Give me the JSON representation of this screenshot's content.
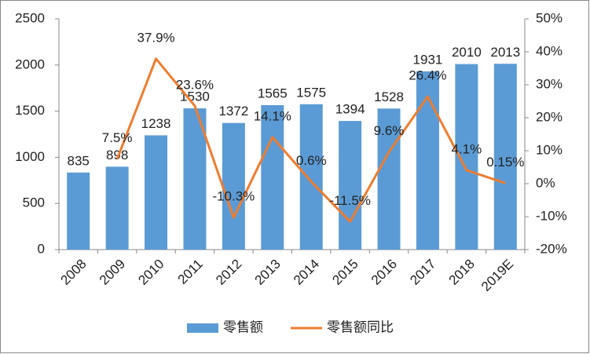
{
  "chart_data": {
    "type": "bar_line",
    "categories": [
      "2008",
      "2009",
      "2010",
      "2011",
      "2012",
      "2013",
      "2014",
      "2015",
      "2016",
      "2017",
      "2018",
      "2019E"
    ],
    "series": [
      {
        "name": "零售额",
        "color": "#5b9bd5",
        "type": "bar",
        "values": [
          835,
          898,
          1238,
          1530,
          1372,
          1565,
          1575,
          1394,
          1528,
          1931,
          2010,
          2013
        ]
      },
      {
        "name": "零售额同比",
        "color": "#ed7d31",
        "type": "line",
        "axis": "y2",
        "values": [
          null,
          7.5,
          37.9,
          23.6,
          -10.3,
          14.1,
          0.6,
          -11.5,
          9.6,
          26.4,
          4.1,
          0.15
        ],
        "value_labels": [
          null,
          "7.5%",
          "37.9%",
          "23.6%",
          "-10.3%",
          "14.1%",
          "0.6%",
          "-11.5%",
          "9.6%",
          "26.4%",
          "4.1%",
          "0.15%"
        ]
      }
    ],
    "ylim": [
      0,
      2500
    ],
    "yticks": [
      0,
      500,
      1000,
      1500,
      2000,
      2500
    ],
    "y2lim": [
      -20,
      50
    ],
    "y2ticks": [
      {
        "value": -20,
        "label": "-20%"
      },
      {
        "value": -10,
        "label": "-10%"
      },
      {
        "value": 0,
        "label": "0%"
      },
      {
        "value": 10,
        "label": "10%"
      },
      {
        "value": 20,
        "label": "20%"
      },
      {
        "value": 30,
        "label": "30%"
      },
      {
        "value": 40,
        "label": "40%"
      },
      {
        "value": 50,
        "label": "50%"
      }
    ],
    "grid": false,
    "legend": "bottom"
  }
}
